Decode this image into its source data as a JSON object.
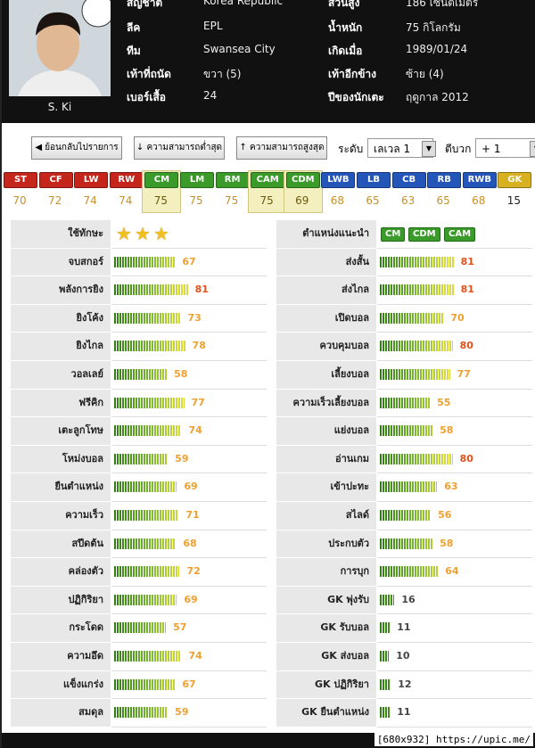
{
  "profile": {
    "name": "S. Ki",
    "rows": [
      [
        "สัญชาติ",
        "Korea Republic",
        "ส่วนสูง",
        "186 เซนติเมตร"
      ],
      [
        "ลีค",
        "EPL",
        "น้ำหนัก",
        "75 กิโลกรัม"
      ],
      [
        "ทีม",
        "Swansea City",
        "เกิดเมื่อ",
        "1989/01/24"
      ],
      [
        "เท้าที่ถนัด",
        "ขวา (5)",
        "เท้าอีกข้าง",
        "ซ้าย (4)"
      ],
      [
        "เบอร์เสื้อ",
        "24",
        "ปีของนักเตะ",
        "ฤดูกาล 2012"
      ]
    ]
  },
  "buttons": [
    "ย้อนกลับไปรายการ",
    "ความสามารถต่ำสุด",
    "ความสามารถสูงสุด"
  ],
  "level_label": "ระดับ",
  "level_value": "เลเวล 1",
  "plus_label": "ตีบวก",
  "plus_value": "+ 1",
  "positions": [
    {
      "label": "ST",
      "value": 70,
      "color": "#c4261b",
      "highlight": false
    },
    {
      "label": "CF",
      "value": 72,
      "color": "#c4261b",
      "highlight": false
    },
    {
      "label": "LW",
      "value": 74,
      "color": "#c4261b",
      "highlight": false
    },
    {
      "label": "RW",
      "value": 74,
      "color": "#c4261b",
      "highlight": false
    },
    {
      "label": "CM",
      "value": 75,
      "color": "#3a9a2a",
      "highlight": true
    },
    {
      "label": "LM",
      "value": 75,
      "color": "#3a9a2a",
      "highlight": false
    },
    {
      "label": "RM",
      "value": 75,
      "color": "#3a9a2a",
      "highlight": false
    },
    {
      "label": "CAM",
      "value": 75,
      "color": "#3a9a2a",
      "highlight": true
    },
    {
      "label": "CDM",
      "value": 69,
      "color": "#3a9a2a",
      "highlight": true
    },
    {
      "label": "LWB",
      "value": 68,
      "color": "#2455b8",
      "highlight": false
    },
    {
      "label": "LB",
      "value": 65,
      "color": "#2455b8",
      "highlight": false
    },
    {
      "label": "CB",
      "value": 63,
      "color": "#2455b8",
      "highlight": false
    },
    {
      "label": "RB",
      "value": 65,
      "color": "#2455b8",
      "highlight": false
    },
    {
      "label": "RWB",
      "value": 68,
      "color": "#2455b8",
      "highlight": false
    },
    {
      "label": "GK",
      "value": 15,
      "color": "#d8b020",
      "highlight": false
    }
  ],
  "stats": {
    "skill_label": "ใช้ทักษะ",
    "skill_stars": 3,
    "recommended_label": "ตำแหน่งแนะนำ",
    "recommended": [
      "CM",
      "CDM",
      "CAM"
    ],
    "left": [
      [
        "จบสกอร์",
        67
      ],
      [
        "พลังการยิง",
        81
      ],
      [
        "ยิงโค้ง",
        73
      ],
      [
        "ยิงไกล",
        78
      ],
      [
        "วอลเลย์",
        58
      ],
      [
        "ฟรีคิก",
        77
      ],
      [
        "เตะลูกโทษ",
        74
      ],
      [
        "โหม่งบอล",
        59
      ],
      [
        "ยืนตำแหน่ง",
        69
      ],
      [
        "ความเร็ว",
        71
      ],
      [
        "สปีดต้น",
        68
      ],
      [
        "คล่องตัว",
        72
      ],
      [
        "ปฏิกิริยา",
        69
      ],
      [
        "กระโดด",
        57
      ],
      [
        "ความอึด",
        74
      ],
      [
        "แข็งแกร่ง",
        67
      ],
      [
        "สมดุล",
        59
      ]
    ],
    "right": [
      [
        "ส่งสั้น",
        81
      ],
      [
        "ส่งไกล",
        81
      ],
      [
        "เปิดบอล",
        70
      ],
      [
        "ควบคุมบอล",
        80
      ],
      [
        "เลี้ยงบอล",
        77
      ],
      [
        "ความเร็วเลี้ยงบอล",
        55
      ],
      [
        "แย่งบอล",
        58
      ],
      [
        "อ่านเกม",
        80
      ],
      [
        "เข้าปะทะ",
        63
      ],
      [
        "สไลด์",
        56
      ],
      [
        "ประกบตัว",
        58
      ],
      [
        "การบุก",
        64
      ],
      [
        "GK พุ่งรับ",
        16
      ],
      [
        "GK รับบอล",
        11
      ],
      [
        "GK ส่งบอล",
        10
      ],
      [
        "GK ปฏิกิริยา",
        12
      ],
      [
        "GK ยืนตำแหน่ง",
        11
      ]
    ]
  },
  "watermark": "[680x932] https://upic.me/"
}
